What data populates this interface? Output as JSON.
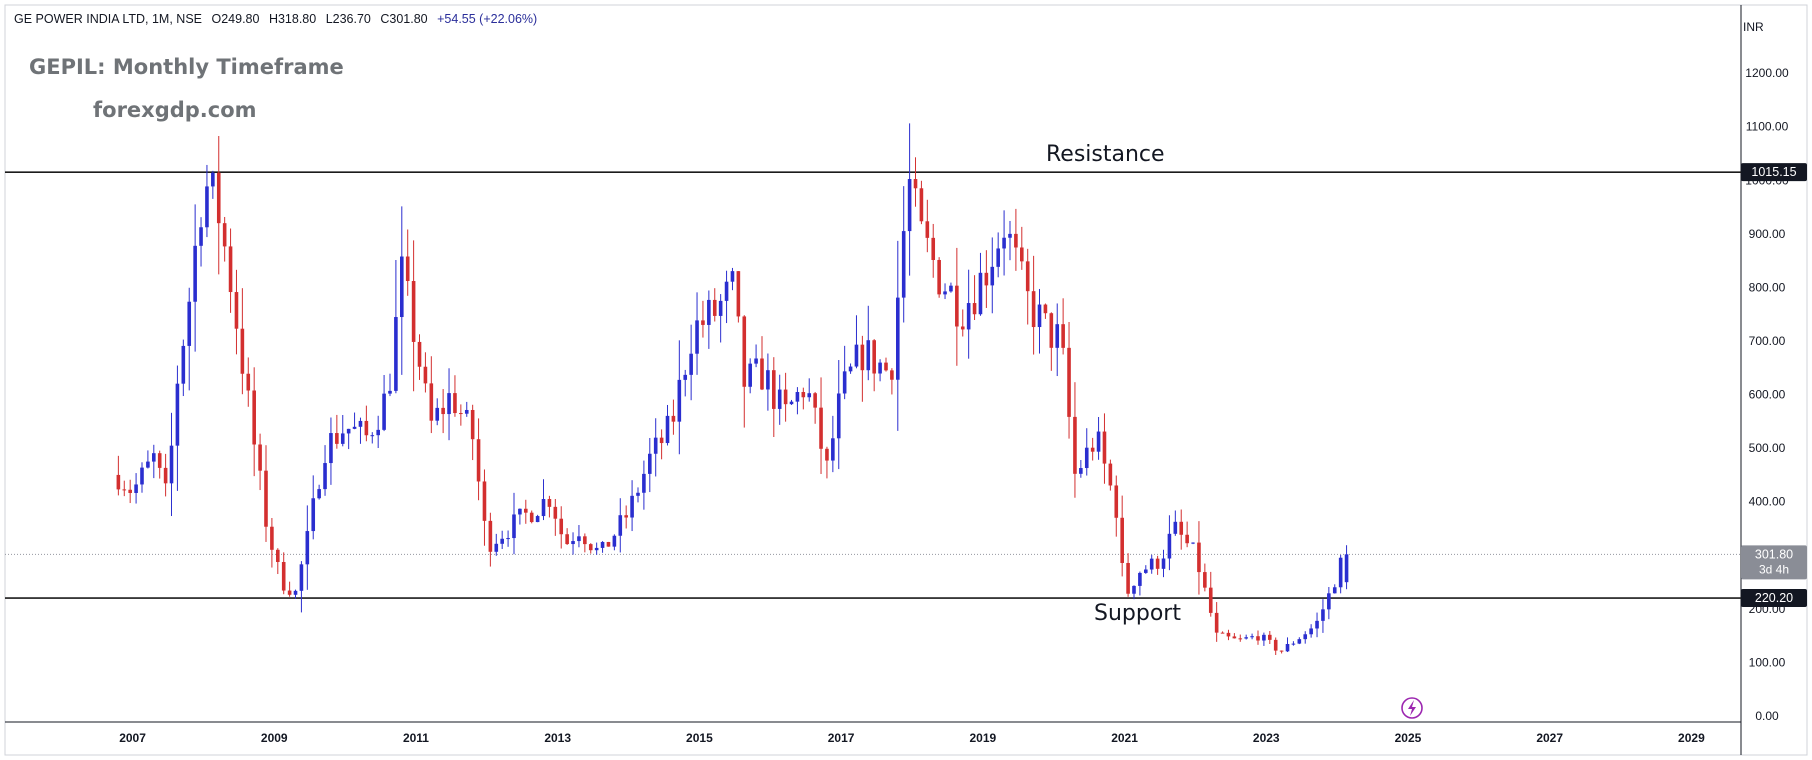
{
  "header": {
    "symbol": "GE POWER INDIA LTD, 1M, NSE",
    "open": "O249.80",
    "high": "H318.80",
    "low": "L236.70",
    "close": "C301.80",
    "change": "+54.55 (+22.06%)"
  },
  "watermark": {
    "title": "GEPIL: Monthly Timeframe",
    "site": "forexgdp.com"
  },
  "currency": "INR",
  "annotations": {
    "resistance": "Resistance",
    "support": "Support"
  },
  "price_tags": {
    "resistance": "1015.15",
    "last": "301.80",
    "countdown": "3d 4h",
    "support": "220.20"
  },
  "colors": {
    "up": "#2a2ecf",
    "down": "#d32f2f",
    "line": "#1b1b1b",
    "tag_dark": "#131722",
    "tag_last": "#8a8d96"
  },
  "chart_data": {
    "type": "candlestick",
    "title": "GEPIL: Monthly Timeframe",
    "ylim": [
      0,
      1260
    ],
    "xlim": [
      2005.2,
      2029.7
    ],
    "y_ticks": [
      "0.00",
      "100.00",
      "200.00",
      "300.00",
      "400.00",
      "500.00",
      "600.00",
      "700.00",
      "800.00",
      "900.00",
      "1000.00",
      "1100.00",
      "1200.00"
    ],
    "x_ticks": [
      "2007",
      "2009",
      "2011",
      "2013",
      "2015",
      "2017",
      "2019",
      "2021",
      "2023",
      "2025",
      "2027",
      "2029"
    ],
    "horizontal_lines": [
      {
        "label": "Resistance",
        "value": 1015.15
      },
      {
        "label": "Support",
        "value": 220.2
      }
    ],
    "last_price": 301.8,
    "anchors": [
      [
        2006.8,
        450
      ],
      [
        2007.0,
        420
      ],
      [
        2007.3,
        480
      ],
      [
        2007.5,
        400
      ],
      [
        2007.6,
        600
      ],
      [
        2007.8,
        780
      ],
      [
        2008.0,
        1000
      ],
      [
        2008.2,
        950
      ],
      [
        2008.4,
        800
      ],
      [
        2008.7,
        520
      ],
      [
        2008.9,
        350
      ],
      [
        2009.1,
        250
      ],
      [
        2009.3,
        230
      ],
      [
        2009.5,
        350
      ],
      [
        2009.7,
        500
      ],
      [
        2010.0,
        540
      ],
      [
        2010.3,
        520
      ],
      [
        2010.6,
        600
      ],
      [
        2010.8,
        820
      ],
      [
        2011.0,
        700
      ],
      [
        2011.2,
        540
      ],
      [
        2011.5,
        600
      ],
      [
        2011.8,
        520
      ],
      [
        2012.0,
        320
      ],
      [
        2012.3,
        350
      ],
      [
        2012.6,
        380
      ],
      [
        2012.9,
        410
      ],
      [
        2013.1,
        320
      ],
      [
        2013.3,
        350
      ],
      [
        2013.6,
        300
      ],
      [
        2014.0,
        380
      ],
      [
        2014.3,
        480
      ],
      [
        2014.6,
        540
      ],
      [
        2014.9,
        720
      ],
      [
        2015.2,
        750
      ],
      [
        2015.5,
        800
      ],
      [
        2015.6,
        620
      ],
      [
        2015.9,
        640
      ],
      [
        2016.2,
        560
      ],
      [
        2016.5,
        620
      ],
      [
        2016.8,
        460
      ],
      [
        2017.0,
        600
      ],
      [
        2017.3,
        680
      ],
      [
        2017.7,
        640
      ],
      [
        2017.95,
        1000
      ],
      [
        2018.1,
        900
      ],
      [
        2018.4,
        820
      ],
      [
        2018.7,
        760
      ],
      [
        2019.0,
        820
      ],
      [
        2019.3,
        920
      ],
      [
        2019.6,
        780
      ],
      [
        2019.9,
        720
      ],
      [
        2020.1,
        700
      ],
      [
        2020.3,
        450
      ],
      [
        2020.6,
        520
      ],
      [
        2020.9,
        380
      ],
      [
        2021.0,
        220
      ],
      [
        2021.2,
        270
      ],
      [
        2021.5,
        290
      ],
      [
        2021.7,
        350
      ],
      [
        2022.0,
        300
      ],
      [
        2022.3,
        150
      ],
      [
        2022.6,
        140
      ],
      [
        2022.9,
        150
      ],
      [
        2023.2,
        120
      ],
      [
        2023.4,
        140
      ],
      [
        2023.7,
        170
      ],
      [
        2023.9,
        230
      ],
      [
        2024.1,
        301.8
      ]
    ]
  }
}
